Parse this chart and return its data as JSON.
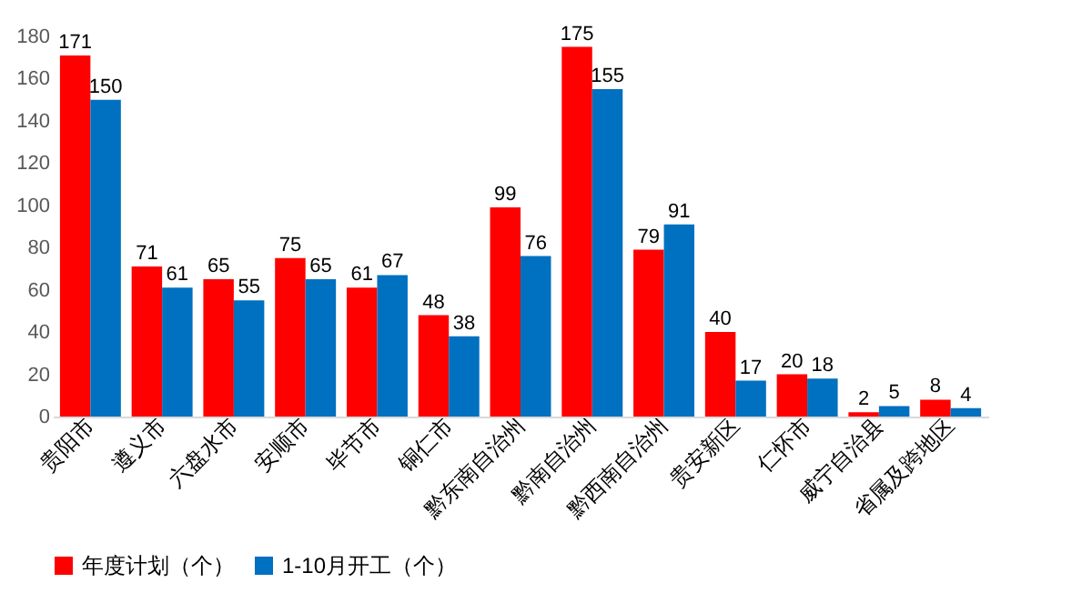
{
  "chart_data": {
    "type": "bar",
    "categories": [
      "贵阳市",
      "遵义市",
      "六盘水市",
      "安顺市",
      "毕节市",
      "铜仁市",
      "黔东南自治州",
      "黔南自治州",
      "黔西南自治州",
      "贵安新区",
      "仁怀市",
      "威宁自治县",
      "省属及跨地区"
    ],
    "series": [
      {
        "name": "年度计划（个）",
        "color": "#ff0000",
        "values": [
          171,
          71,
          65,
          75,
          61,
          48,
          99,
          175,
          79,
          40,
          20,
          2,
          8
        ]
      },
      {
        "name": "1-10月开工（个）",
        "color": "#0070c0",
        "values": [
          150,
          61,
          55,
          65,
          67,
          38,
          76,
          155,
          91,
          17,
          18,
          5,
          4
        ]
      }
    ],
    "ylim": [
      0,
      180
    ],
    "yticks": [
      0,
      20,
      40,
      60,
      80,
      100,
      120,
      140,
      160,
      180
    ],
    "data_labels": true,
    "grid": false,
    "legend": "bottom"
  }
}
